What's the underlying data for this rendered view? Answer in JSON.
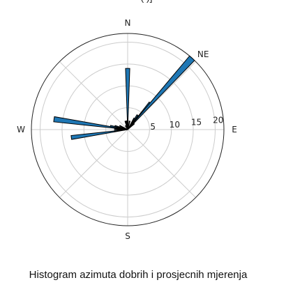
{
  "header_fragment": "(                                       )]",
  "chart_data": {
    "type": "polar-bar",
    "title": "Histogram azimuta dobrih i prosjecnih mjerenja",
    "direction_labels": [
      "N",
      "NE",
      "E",
      "S",
      "W"
    ],
    "radial_ticks": [
      5,
      10,
      15,
      20
    ],
    "r_max": 22,
    "bar_width_deg": 4,
    "bar_color": "#1f77b4",
    "bars": [
      {
        "azimuth_deg": 0,
        "value": 14
      },
      {
        "azimuth_deg": 2,
        "value": 2
      },
      {
        "azimuth_deg": 14,
        "value": 2
      },
      {
        "azimuth_deg": 30,
        "value": 3
      },
      {
        "azimuth_deg": 34,
        "value": 4
      },
      {
        "azimuth_deg": 40,
        "value": 8
      },
      {
        "azimuth_deg": 42,
        "value": 22
      },
      {
        "azimuth_deg": 44,
        "value": 2
      },
      {
        "azimuth_deg": 48,
        "value": 2
      },
      {
        "azimuth_deg": 262,
        "value": 13
      },
      {
        "azimuth_deg": 264,
        "value": 3
      },
      {
        "azimuth_deg": 272,
        "value": 3
      },
      {
        "azimuth_deg": 278,
        "value": 17
      },
      {
        "azimuth_deg": 282,
        "value": 4
      },
      {
        "azimuth_deg": 286,
        "value": 3
      },
      {
        "azimuth_deg": 296,
        "value": 2
      },
      {
        "azimuth_deg": 330,
        "value": 1
      },
      {
        "azimuth_deg": 344,
        "value": 2
      },
      {
        "azimuth_deg": 352,
        "value": 2
      }
    ]
  }
}
